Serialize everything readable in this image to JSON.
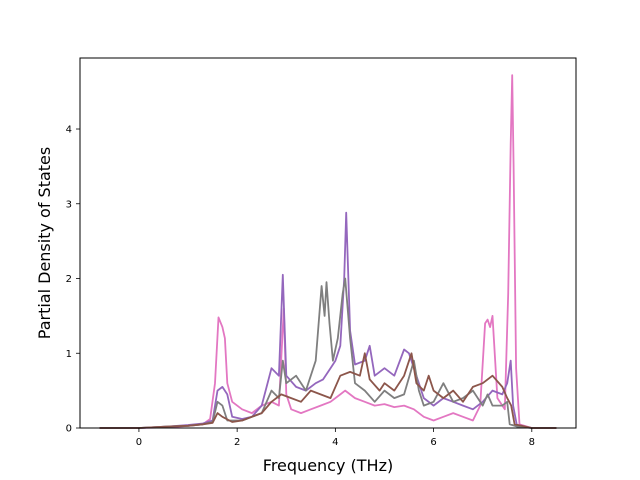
{
  "chart_data": {
    "type": "line",
    "title": "",
    "xlabel": "Frequency (THz)",
    "ylabel": "Partial Density of States",
    "xlim": [
      -1.2,
      8.9
    ],
    "ylim": [
      0,
      4.95
    ],
    "xticks": [
      0,
      2,
      4,
      6,
      8
    ],
    "yticks": [
      0,
      1,
      2,
      3,
      4
    ],
    "grid": false,
    "legend": "none",
    "series": [
      {
        "color": "#e377c2",
        "points": [
          [
            -0.8,
            0
          ],
          [
            0,
            0
          ],
          [
            0.6,
            0.01
          ],
          [
            1.0,
            0.03
          ],
          [
            1.3,
            0.05
          ],
          [
            1.45,
            0.12
          ],
          [
            1.55,
            0.6
          ],
          [
            1.62,
            1.48
          ],
          [
            1.7,
            1.35
          ],
          [
            1.75,
            1.2
          ],
          [
            1.8,
            0.6
          ],
          [
            1.9,
            0.35
          ],
          [
            2.1,
            0.25
          ],
          [
            2.3,
            0.2
          ],
          [
            2.5,
            0.3
          ],
          [
            2.7,
            0.35
          ],
          [
            2.85,
            0.3
          ],
          [
            2.95,
            1.6
          ],
          [
            3.0,
            0.45
          ],
          [
            3.1,
            0.25
          ],
          [
            3.3,
            0.2
          ],
          [
            3.5,
            0.25
          ],
          [
            3.7,
            0.3
          ],
          [
            3.9,
            0.35
          ],
          [
            4.1,
            0.45
          ],
          [
            4.2,
            0.5
          ],
          [
            4.4,
            0.4
          ],
          [
            4.6,
            0.35
          ],
          [
            4.8,
            0.3
          ],
          [
            5.0,
            0.32
          ],
          [
            5.2,
            0.28
          ],
          [
            5.4,
            0.3
          ],
          [
            5.6,
            0.25
          ],
          [
            5.8,
            0.15
          ],
          [
            6.0,
            0.1
          ],
          [
            6.2,
            0.15
          ],
          [
            6.4,
            0.2
          ],
          [
            6.6,
            0.15
          ],
          [
            6.8,
            0.1
          ],
          [
            6.95,
            0.3
          ],
          [
            7.05,
            1.4
          ],
          [
            7.1,
            1.45
          ],
          [
            7.15,
            1.35
          ],
          [
            7.2,
            1.5
          ],
          [
            7.3,
            0.4
          ],
          [
            7.45,
            0.25
          ],
          [
            7.52,
            1.8
          ],
          [
            7.57,
            3.8
          ],
          [
            7.6,
            4.72
          ],
          [
            7.63,
            3.5
          ],
          [
            7.68,
            0.8
          ],
          [
            7.75,
            0.05
          ],
          [
            8.0,
            0
          ],
          [
            8.5,
            0
          ]
        ]
      },
      {
        "color": "#9467bd",
        "points": [
          [
            -0.8,
            0
          ],
          [
            0,
            0
          ],
          [
            0.6,
            0.02
          ],
          [
            1.0,
            0.04
          ],
          [
            1.3,
            0.06
          ],
          [
            1.5,
            0.1
          ],
          [
            1.6,
            0.5
          ],
          [
            1.7,
            0.55
          ],
          [
            1.8,
            0.45
          ],
          [
            1.9,
            0.15
          ],
          [
            2.1,
            0.12
          ],
          [
            2.3,
            0.15
          ],
          [
            2.5,
            0.3
          ],
          [
            2.7,
            0.8
          ],
          [
            2.85,
            0.7
          ],
          [
            2.93,
            2.05
          ],
          [
            3.0,
            0.7
          ],
          [
            3.2,
            0.55
          ],
          [
            3.4,
            0.5
          ],
          [
            3.6,
            0.6
          ],
          [
            3.75,
            0.65
          ],
          [
            3.9,
            0.8
          ],
          [
            4.0,
            0.9
          ],
          [
            4.1,
            1.1
          ],
          [
            4.18,
            2.0
          ],
          [
            4.22,
            2.88
          ],
          [
            4.3,
            1.3
          ],
          [
            4.4,
            0.85
          ],
          [
            4.6,
            0.9
          ],
          [
            4.7,
            1.1
          ],
          [
            4.8,
            0.7
          ],
          [
            5.0,
            0.8
          ],
          [
            5.2,
            0.7
          ],
          [
            5.4,
            1.05
          ],
          [
            5.5,
            1.0
          ],
          [
            5.6,
            0.8
          ],
          [
            5.8,
            0.4
          ],
          [
            6.0,
            0.3
          ],
          [
            6.2,
            0.4
          ],
          [
            6.4,
            0.35
          ],
          [
            6.6,
            0.3
          ],
          [
            6.8,
            0.25
          ],
          [
            7.0,
            0.35
          ],
          [
            7.2,
            0.5
          ],
          [
            7.4,
            0.45
          ],
          [
            7.5,
            0.6
          ],
          [
            7.57,
            0.9
          ],
          [
            7.62,
            0.3
          ],
          [
            7.7,
            0.02
          ],
          [
            8.0,
            0
          ],
          [
            8.5,
            0
          ]
        ]
      },
      {
        "color": "#7f7f7f",
        "points": [
          [
            -0.8,
            0
          ],
          [
            0,
            0
          ],
          [
            0.6,
            0.02
          ],
          [
            1.0,
            0.03
          ],
          [
            1.3,
            0.05
          ],
          [
            1.5,
            0.08
          ],
          [
            1.6,
            0.35
          ],
          [
            1.7,
            0.3
          ],
          [
            1.8,
            0.1
          ],
          [
            2.1,
            0.1
          ],
          [
            2.3,
            0.15
          ],
          [
            2.5,
            0.2
          ],
          [
            2.7,
            0.5
          ],
          [
            2.85,
            0.4
          ],
          [
            2.93,
            0.9
          ],
          [
            3.0,
            0.6
          ],
          [
            3.2,
            0.7
          ],
          [
            3.4,
            0.5
          ],
          [
            3.6,
            0.9
          ],
          [
            3.72,
            1.9
          ],
          [
            3.78,
            1.5
          ],
          [
            3.82,
            1.95
          ],
          [
            3.88,
            1.4
          ],
          [
            3.95,
            0.9
          ],
          [
            4.05,
            1.2
          ],
          [
            4.15,
            1.8
          ],
          [
            4.2,
            2.0
          ],
          [
            4.3,
            1.2
          ],
          [
            4.4,
            0.6
          ],
          [
            4.6,
            0.5
          ],
          [
            4.8,
            0.35
          ],
          [
            5.0,
            0.5
          ],
          [
            5.2,
            0.4
          ],
          [
            5.4,
            0.45
          ],
          [
            5.6,
            0.9
          ],
          [
            5.7,
            0.5
          ],
          [
            5.8,
            0.3
          ],
          [
            6.0,
            0.35
          ],
          [
            6.2,
            0.6
          ],
          [
            6.4,
            0.35
          ],
          [
            6.6,
            0.4
          ],
          [
            6.8,
            0.5
          ],
          [
            7.0,
            0.3
          ],
          [
            7.1,
            0.45
          ],
          [
            7.2,
            0.3
          ],
          [
            7.4,
            0.3
          ],
          [
            7.5,
            0.35
          ],
          [
            7.55,
            0.05
          ],
          [
            7.7,
            0.02
          ],
          [
            8.0,
            0
          ],
          [
            8.5,
            0
          ]
        ]
      },
      {
        "color": "#8c564b",
        "points": [
          [
            -0.8,
            0
          ],
          [
            0,
            0
          ],
          [
            0.6,
            0.02
          ],
          [
            1.0,
            0.03
          ],
          [
            1.3,
            0.05
          ],
          [
            1.5,
            0.07
          ],
          [
            1.6,
            0.2
          ],
          [
            1.7,
            0.15
          ],
          [
            1.9,
            0.08
          ],
          [
            2.1,
            0.1
          ],
          [
            2.3,
            0.15
          ],
          [
            2.5,
            0.2
          ],
          [
            2.7,
            0.35
          ],
          [
            2.9,
            0.45
          ],
          [
            3.1,
            0.4
          ],
          [
            3.3,
            0.35
          ],
          [
            3.5,
            0.5
          ],
          [
            3.7,
            0.45
          ],
          [
            3.9,
            0.4
          ],
          [
            4.1,
            0.7
          ],
          [
            4.3,
            0.75
          ],
          [
            4.5,
            0.7
          ],
          [
            4.6,
            1.0
          ],
          [
            4.7,
            0.65
          ],
          [
            4.9,
            0.5
          ],
          [
            5.0,
            0.6
          ],
          [
            5.2,
            0.5
          ],
          [
            5.4,
            0.7
          ],
          [
            5.55,
            1.0
          ],
          [
            5.65,
            0.6
          ],
          [
            5.8,
            0.5
          ],
          [
            5.9,
            0.7
          ],
          [
            6.0,
            0.5
          ],
          [
            6.2,
            0.4
          ],
          [
            6.4,
            0.5
          ],
          [
            6.6,
            0.35
          ],
          [
            6.8,
            0.55
          ],
          [
            7.0,
            0.6
          ],
          [
            7.2,
            0.7
          ],
          [
            7.4,
            0.55
          ],
          [
            7.5,
            0.4
          ],
          [
            7.58,
            0.3
          ],
          [
            7.65,
            0.05
          ],
          [
            8.0,
            0
          ],
          [
            8.5,
            0
          ]
        ]
      }
    ]
  }
}
